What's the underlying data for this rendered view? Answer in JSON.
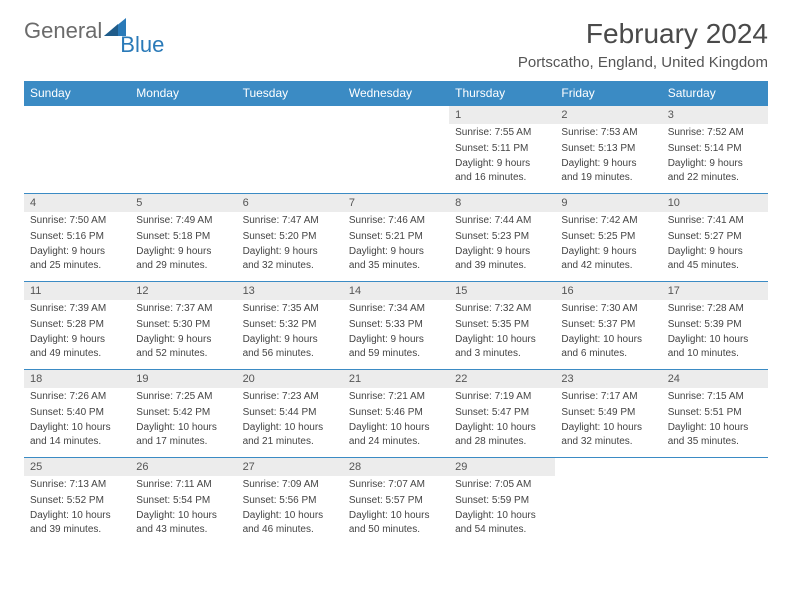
{
  "logo": {
    "text1": "General",
    "text2": "Blue"
  },
  "title": "February 2024",
  "location": "Portscatho, England, United Kingdom",
  "colors": {
    "header_bg": "#3b8bc4",
    "header_text": "#ffffff",
    "daynum_bg": "#ececec",
    "cell_border": "#3b8bc4",
    "logo_gray": "#6b6b6b",
    "logo_blue": "#2a7ab8"
  },
  "day_names": [
    "Sunday",
    "Monday",
    "Tuesday",
    "Wednesday",
    "Thursday",
    "Friday",
    "Saturday"
  ],
  "weeks": [
    [
      {
        "n": "",
        "sr": "",
        "ss": "",
        "dl": ""
      },
      {
        "n": "",
        "sr": "",
        "ss": "",
        "dl": ""
      },
      {
        "n": "",
        "sr": "",
        "ss": "",
        "dl": ""
      },
      {
        "n": "",
        "sr": "",
        "ss": "",
        "dl": ""
      },
      {
        "n": "1",
        "sr": "Sunrise: 7:55 AM",
        "ss": "Sunset: 5:11 PM",
        "dl": "Daylight: 9 hours and 16 minutes."
      },
      {
        "n": "2",
        "sr": "Sunrise: 7:53 AM",
        "ss": "Sunset: 5:13 PM",
        "dl": "Daylight: 9 hours and 19 minutes."
      },
      {
        "n": "3",
        "sr": "Sunrise: 7:52 AM",
        "ss": "Sunset: 5:14 PM",
        "dl": "Daylight: 9 hours and 22 minutes."
      }
    ],
    [
      {
        "n": "4",
        "sr": "Sunrise: 7:50 AM",
        "ss": "Sunset: 5:16 PM",
        "dl": "Daylight: 9 hours and 25 minutes."
      },
      {
        "n": "5",
        "sr": "Sunrise: 7:49 AM",
        "ss": "Sunset: 5:18 PM",
        "dl": "Daylight: 9 hours and 29 minutes."
      },
      {
        "n": "6",
        "sr": "Sunrise: 7:47 AM",
        "ss": "Sunset: 5:20 PM",
        "dl": "Daylight: 9 hours and 32 minutes."
      },
      {
        "n": "7",
        "sr": "Sunrise: 7:46 AM",
        "ss": "Sunset: 5:21 PM",
        "dl": "Daylight: 9 hours and 35 minutes."
      },
      {
        "n": "8",
        "sr": "Sunrise: 7:44 AM",
        "ss": "Sunset: 5:23 PM",
        "dl": "Daylight: 9 hours and 39 minutes."
      },
      {
        "n": "9",
        "sr": "Sunrise: 7:42 AM",
        "ss": "Sunset: 5:25 PM",
        "dl": "Daylight: 9 hours and 42 minutes."
      },
      {
        "n": "10",
        "sr": "Sunrise: 7:41 AM",
        "ss": "Sunset: 5:27 PM",
        "dl": "Daylight: 9 hours and 45 minutes."
      }
    ],
    [
      {
        "n": "11",
        "sr": "Sunrise: 7:39 AM",
        "ss": "Sunset: 5:28 PM",
        "dl": "Daylight: 9 hours and 49 minutes."
      },
      {
        "n": "12",
        "sr": "Sunrise: 7:37 AM",
        "ss": "Sunset: 5:30 PM",
        "dl": "Daylight: 9 hours and 52 minutes."
      },
      {
        "n": "13",
        "sr": "Sunrise: 7:35 AM",
        "ss": "Sunset: 5:32 PM",
        "dl": "Daylight: 9 hours and 56 minutes."
      },
      {
        "n": "14",
        "sr": "Sunrise: 7:34 AM",
        "ss": "Sunset: 5:33 PM",
        "dl": "Daylight: 9 hours and 59 minutes."
      },
      {
        "n": "15",
        "sr": "Sunrise: 7:32 AM",
        "ss": "Sunset: 5:35 PM",
        "dl": "Daylight: 10 hours and 3 minutes."
      },
      {
        "n": "16",
        "sr": "Sunrise: 7:30 AM",
        "ss": "Sunset: 5:37 PM",
        "dl": "Daylight: 10 hours and 6 minutes."
      },
      {
        "n": "17",
        "sr": "Sunrise: 7:28 AM",
        "ss": "Sunset: 5:39 PM",
        "dl": "Daylight: 10 hours and 10 minutes."
      }
    ],
    [
      {
        "n": "18",
        "sr": "Sunrise: 7:26 AM",
        "ss": "Sunset: 5:40 PM",
        "dl": "Daylight: 10 hours and 14 minutes."
      },
      {
        "n": "19",
        "sr": "Sunrise: 7:25 AM",
        "ss": "Sunset: 5:42 PM",
        "dl": "Daylight: 10 hours and 17 minutes."
      },
      {
        "n": "20",
        "sr": "Sunrise: 7:23 AM",
        "ss": "Sunset: 5:44 PM",
        "dl": "Daylight: 10 hours and 21 minutes."
      },
      {
        "n": "21",
        "sr": "Sunrise: 7:21 AM",
        "ss": "Sunset: 5:46 PM",
        "dl": "Daylight: 10 hours and 24 minutes."
      },
      {
        "n": "22",
        "sr": "Sunrise: 7:19 AM",
        "ss": "Sunset: 5:47 PM",
        "dl": "Daylight: 10 hours and 28 minutes."
      },
      {
        "n": "23",
        "sr": "Sunrise: 7:17 AM",
        "ss": "Sunset: 5:49 PM",
        "dl": "Daylight: 10 hours and 32 minutes."
      },
      {
        "n": "24",
        "sr": "Sunrise: 7:15 AM",
        "ss": "Sunset: 5:51 PM",
        "dl": "Daylight: 10 hours and 35 minutes."
      }
    ],
    [
      {
        "n": "25",
        "sr": "Sunrise: 7:13 AM",
        "ss": "Sunset: 5:52 PM",
        "dl": "Daylight: 10 hours and 39 minutes."
      },
      {
        "n": "26",
        "sr": "Sunrise: 7:11 AM",
        "ss": "Sunset: 5:54 PM",
        "dl": "Daylight: 10 hours and 43 minutes."
      },
      {
        "n": "27",
        "sr": "Sunrise: 7:09 AM",
        "ss": "Sunset: 5:56 PM",
        "dl": "Daylight: 10 hours and 46 minutes."
      },
      {
        "n": "28",
        "sr": "Sunrise: 7:07 AM",
        "ss": "Sunset: 5:57 PM",
        "dl": "Daylight: 10 hours and 50 minutes."
      },
      {
        "n": "29",
        "sr": "Sunrise: 7:05 AM",
        "ss": "Sunset: 5:59 PM",
        "dl": "Daylight: 10 hours and 54 minutes."
      },
      {
        "n": "",
        "sr": "",
        "ss": "",
        "dl": ""
      },
      {
        "n": "",
        "sr": "",
        "ss": "",
        "dl": ""
      }
    ]
  ]
}
